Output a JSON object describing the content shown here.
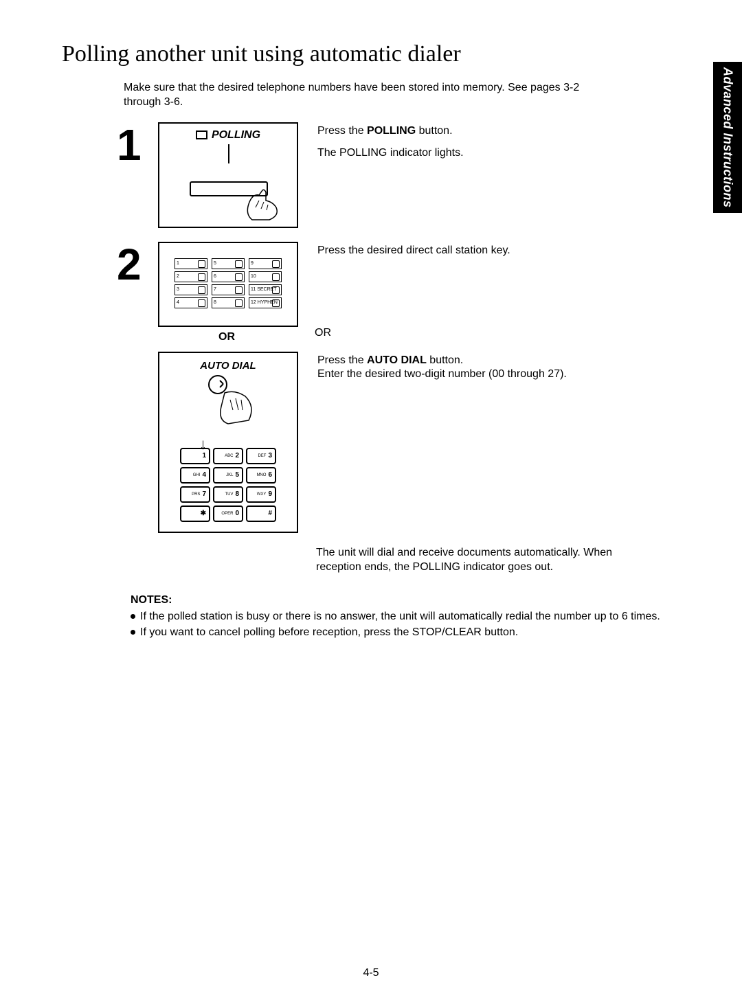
{
  "sideTab": "Advanced Instructions",
  "title": "Polling another unit using automatic dialer",
  "intro": "Make sure that the desired telephone numbers have been stored into memory. See pages 3-2 through 3-6.",
  "step1": {
    "num": "1",
    "illusLabel": "POLLING",
    "line1_pre": "Press the ",
    "line1_bold": "POLLING",
    "line1_post": " button.",
    "line2": "The POLLING indicator lights."
  },
  "step2": {
    "num": "2",
    "line1": "Press the desired direct call station key.",
    "keys": [
      {
        "n": "1"
      },
      {
        "n": "5"
      },
      {
        "n": "9"
      },
      {
        "n": "2"
      },
      {
        "n": "6"
      },
      {
        "n": "10"
      },
      {
        "n": "3"
      },
      {
        "n": "7"
      },
      {
        "n": "11 SECRET"
      },
      {
        "n": "4"
      },
      {
        "n": "8"
      },
      {
        "n": "12 HYPHEN"
      }
    ],
    "or_left": "OR",
    "or_right": "OR",
    "autoLabel": "AUTO DIAL",
    "auto_line1_pre": "Press the ",
    "auto_line1_bold": "AUTO DIAL",
    "auto_line1_post": " button.",
    "auto_line2": "Enter the desired two-digit number (00 through 27).",
    "keypad": [
      {
        "pre": "",
        "n": "1"
      },
      {
        "pre": "ABC",
        "n": "2"
      },
      {
        "pre": "DEF",
        "n": "3"
      },
      {
        "pre": "GHI",
        "n": "4"
      },
      {
        "pre": "JKL",
        "n": "5"
      },
      {
        "pre": "MNO",
        "n": "6"
      },
      {
        "pre": "PRS",
        "n": "7"
      },
      {
        "pre": "TUV",
        "n": "8"
      },
      {
        "pre": "WXY",
        "n": "9"
      },
      {
        "pre": "",
        "n": "✱"
      },
      {
        "pre": "OPER",
        "n": "0"
      },
      {
        "pre": "",
        "n": "#"
      }
    ]
  },
  "result": "The unit will dial and receive documents automatically. When reception ends, the POLLING indicator goes out.",
  "notes": {
    "heading": "NOTES:",
    "n1": "If the polled station is busy or there is no answer, the unit will automatically redial the number up to 6 times.",
    "n2": "If you want to cancel polling before reception, press the STOP/CLEAR button."
  },
  "pageNum": "4-5"
}
